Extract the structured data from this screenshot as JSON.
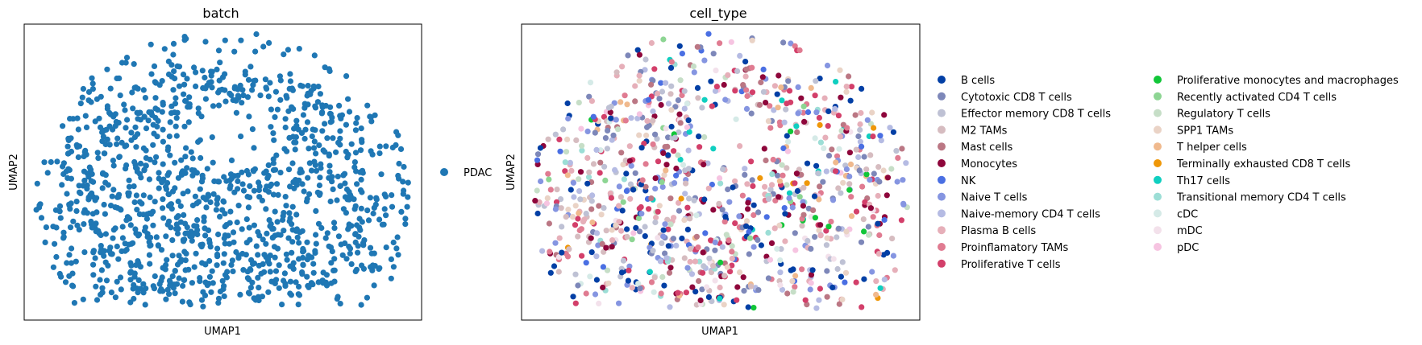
{
  "chart_data": [
    {
      "type": "scatter",
      "title": "batch",
      "xlabel": "UMAP1",
      "ylabel": "UMAP2",
      "grid": false,
      "ticks": false,
      "xlim": [
        -10,
        10
      ],
      "ylim": [
        -10,
        10
      ],
      "legend_placement": "right",
      "categories": [
        {
          "name": "PDAC",
          "color": "#1f77b4"
        }
      ],
      "points_per_category": [
        1200
      ]
    },
    {
      "type": "scatter",
      "title": "cell_type",
      "xlabel": "UMAP1",
      "ylabel": "UMAP2",
      "grid": false,
      "ticks": false,
      "xlim": [
        -10,
        10
      ],
      "ylim": [
        -10,
        10
      ],
      "legend_placement": "right",
      "categories": [
        {
          "name": "B cells",
          "color": "#023fa5"
        },
        {
          "name": "Cytotoxic CD8 T cells",
          "color": "#7d87b9"
        },
        {
          "name": "Effector memory CD8 T cells",
          "color": "#bec1d4"
        },
        {
          "name": "M2 TAMs",
          "color": "#d6bcc0"
        },
        {
          "name": "Mast cells",
          "color": "#bb7784"
        },
        {
          "name": "Monocytes",
          "color": "#8e063b"
        },
        {
          "name": "NK",
          "color": "#4a6fe3"
        },
        {
          "name": "Naive T cells",
          "color": "#8595e1"
        },
        {
          "name": "Naive-memory CD4 T cells",
          "color": "#b5bbe3"
        },
        {
          "name": "Plasma B cells",
          "color": "#e6afb9"
        },
        {
          "name": "Proinflamatory TAMs",
          "color": "#e07b91"
        },
        {
          "name": "Proliferative T cells",
          "color": "#d33f6a"
        },
        {
          "name": "Proliferative monocytes and macrophages",
          "color": "#11c638"
        },
        {
          "name": "Recently activated CD4 T cells",
          "color": "#8dd593"
        },
        {
          "name": "Regulatory T cells",
          "color": "#c6dec7"
        },
        {
          "name": "SPP1 TAMs",
          "color": "#ead3c6"
        },
        {
          "name": "T helper cells",
          "color": "#f0b98d"
        },
        {
          "name": "Terminally exhausted CD8 T cells",
          "color": "#ef9708"
        },
        {
          "name": "Th17 cells",
          "color": "#0fcfc0"
        },
        {
          "name": "Transitional memory CD4 T cells",
          "color": "#9cded6"
        },
        {
          "name": "cDC",
          "color": "#d5eae7"
        },
        {
          "name": "mDC",
          "color": "#f3e1eb"
        },
        {
          "name": "pDC",
          "color": "#f6c4e1"
        }
      ],
      "points_per_category": [
        90,
        80,
        70,
        65,
        55,
        70,
        35,
        75,
        55,
        70,
        75,
        80,
        12,
        12,
        30,
        45,
        25,
        10,
        18,
        20,
        20,
        25,
        20
      ]
    }
  ]
}
